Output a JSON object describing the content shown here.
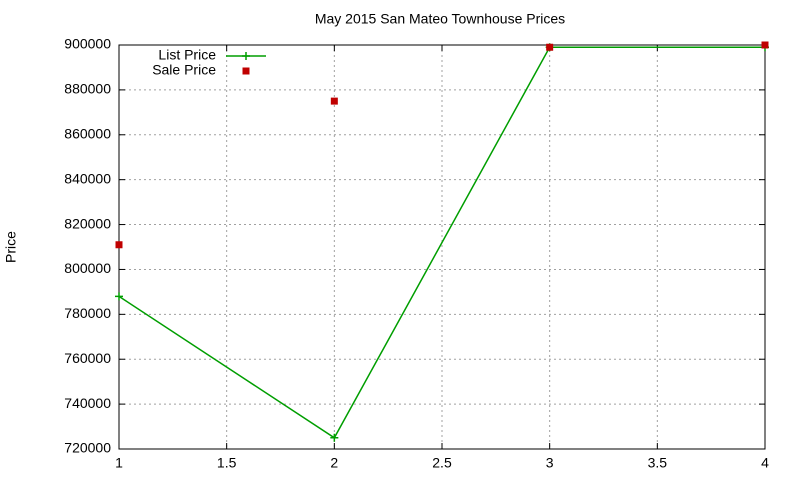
{
  "chart_data": {
    "type": "line",
    "title": "May 2015 San Mateo Townhouse Prices",
    "ylabel": "Price",
    "x": [
      1,
      2,
      3,
      4
    ],
    "series": [
      {
        "name": "List Price",
        "color": "#009e00",
        "mode": "lines+markers",
        "marker": "plus",
        "values": [
          788000,
          725000,
          899000,
          899000
        ]
      },
      {
        "name": "Sale Price",
        "color": "#c00000",
        "mode": "markers",
        "marker": "square",
        "values": [
          811000,
          875000,
          899000,
          900000
        ]
      }
    ],
    "xlim": [
      1,
      4
    ],
    "xticks": [
      1,
      1.5,
      2,
      2.5,
      3,
      3.5,
      4
    ],
    "ylim": [
      720000,
      900000
    ],
    "yticks": [
      720000,
      740000,
      760000,
      780000,
      800000,
      820000,
      840000,
      860000,
      880000,
      900000
    ],
    "grid": true,
    "legend": "top-left"
  }
}
